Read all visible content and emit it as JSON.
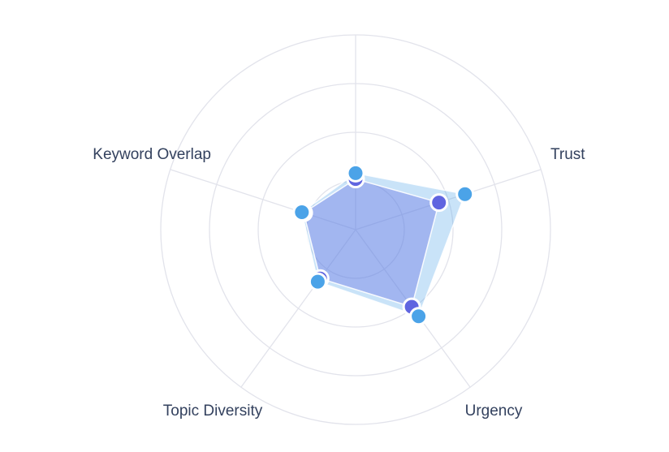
{
  "chart_data": {
    "type": "radar",
    "title": "",
    "legend_visible": false,
    "tick_labels_visible": false,
    "grid": {
      "shape": "circle",
      "ring_count": 4,
      "ring_color": "#e2e3eb",
      "axis_line_color": "#e2e3eb"
    },
    "axis_label_color": "#33415e",
    "indicators": [
      {
        "name": "",
        "max": 1
      },
      {
        "name": "Trust",
        "max": 1
      },
      {
        "name": "Urgency",
        "max": 1
      },
      {
        "name": "Topic Diversity",
        "max": 1
      },
      {
        "name": "Keyword Overlap",
        "max": 1
      }
    ],
    "axis_angles_deg": [
      90,
      18,
      -54,
      -126,
      -198
    ],
    "series": [
      {
        "name": "series-blue",
        "marker_color": "#4ba3e8",
        "fill_color": "rgba(75,163,232,0.30)",
        "values": [
          0.29,
          0.59,
          0.55,
          0.33,
          0.29
        ]
      },
      {
        "name": "series-purple",
        "marker_color": "#6065e0",
        "fill_color": "rgba(100,110,225,0.38)",
        "values": [
          0.26,
          0.45,
          0.49,
          0.31,
          0.28
        ]
      }
    ]
  }
}
